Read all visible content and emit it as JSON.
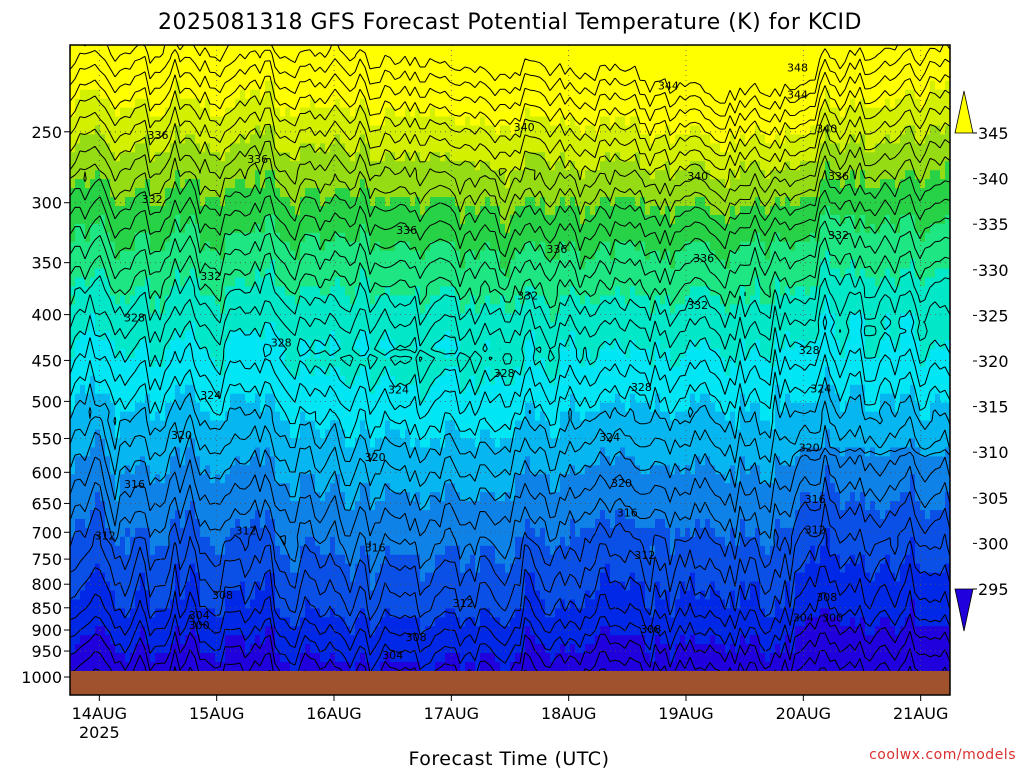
{
  "chart_data": {
    "type": "heatmap",
    "title": "2025081318 GFS Forecast Potential Temperature (K) for KCID",
    "xlabel": "Forecast Time (UTC)",
    "ylabel": "",
    "credit": "coolwx.com/models",
    "x_ticks": [
      {
        "label": "14AUG",
        "sublabel": "2025",
        "day": 14
      },
      {
        "label": "15AUG",
        "sublabel": "",
        "day": 15
      },
      {
        "label": "16AUG",
        "sublabel": "",
        "day": 16
      },
      {
        "label": "17AUG",
        "sublabel": "",
        "day": 17
      },
      {
        "label": "18AUG",
        "sublabel": "",
        "day": 18
      },
      {
        "label": "19AUG",
        "sublabel": "",
        "day": 19
      },
      {
        "label": "20AUG",
        "sublabel": "",
        "day": 20
      },
      {
        "label": "21AUG",
        "sublabel": "",
        "day": 21
      }
    ],
    "xlim_days": [
      13.75,
      21.25
    ],
    "y_ticks": [
      250,
      300,
      350,
      400,
      450,
      500,
      550,
      600,
      650,
      700,
      750,
      800,
      850,
      900,
      950,
      1000
    ],
    "ylim_hpa": [
      200,
      1000
    ],
    "y_scale": "log-pressure",
    "colorbar": {
      "levels": [
        295,
        300,
        305,
        310,
        315,
        320,
        325,
        330,
        335,
        340,
        345
      ],
      "colors": [
        "#2000dd",
        "#0028e6",
        "#0a50e6",
        "#0f82e8",
        "#06b6f0",
        "#00e6f5",
        "#00e8c8",
        "#1ee682",
        "#28d246",
        "#96dc14",
        "#d2f000",
        "#ffff00"
      ],
      "labels": [
        "295",
        "300",
        "305",
        "310",
        "315",
        "320",
        "325",
        "330",
        "335",
        "340",
        "345"
      ]
    },
    "contour_interval_K": 2,
    "contour_labels": [
      {
        "text": "348",
        "day": 19.95,
        "p": 212
      },
      {
        "text": "344",
        "day": 18.85,
        "p": 222
      },
      {
        "text": "344",
        "day": 19.95,
        "p": 227
      },
      {
        "text": "340",
        "day": 17.62,
        "p": 247
      },
      {
        "text": "340",
        "day": 20.2,
        "p": 248
      },
      {
        "text": "336",
        "day": 14.5,
        "p": 252
      },
      {
        "text": "336",
        "day": 15.35,
        "p": 268
      },
      {
        "text": "340",
        "day": 19.1,
        "p": 280
      },
      {
        "text": "336",
        "day": 20.3,
        "p": 280
      },
      {
        "text": "332",
        "day": 14.45,
        "p": 297
      },
      {
        "text": "336",
        "day": 16.62,
        "p": 322
      },
      {
        "text": "332",
        "day": 20.3,
        "p": 326
      },
      {
        "text": "336",
        "day": 17.9,
        "p": 338
      },
      {
        "text": "336",
        "day": 19.15,
        "p": 346
      },
      {
        "text": "332",
        "day": 14.95,
        "p": 362
      },
      {
        "text": "332",
        "day": 17.65,
        "p": 381
      },
      {
        "text": "332",
        "day": 19.1,
        "p": 390
      },
      {
        "text": "328",
        "day": 14.3,
        "p": 403
      },
      {
        "text": "328",
        "day": 15.55,
        "p": 430
      },
      {
        "text": "328",
        "day": 20.05,
        "p": 438
      },
      {
        "text": "328",
        "day": 17.45,
        "p": 465
      },
      {
        "text": "328",
        "day": 18.62,
        "p": 482
      },
      {
        "text": "324",
        "day": 14.95,
        "p": 492
      },
      {
        "text": "324",
        "day": 16.55,
        "p": 485
      },
      {
        "text": "324",
        "day": 20.15,
        "p": 484
      },
      {
        "text": "320",
        "day": 14.7,
        "p": 545
      },
      {
        "text": "324",
        "day": 18.35,
        "p": 548
      },
      {
        "text": "320",
        "day": 16.35,
        "p": 577
      },
      {
        "text": "320",
        "day": 20.05,
        "p": 563
      },
      {
        "text": "316",
        "day": 14.3,
        "p": 618
      },
      {
        "text": "320",
        "day": 18.45,
        "p": 617
      },
      {
        "text": "316",
        "day": 20.1,
        "p": 643
      },
      {
        "text": "316",
        "day": 18.5,
        "p": 665
      },
      {
        "text": "312",
        "day": 14.05,
        "p": 706
      },
      {
        "text": "312",
        "day": 15.25,
        "p": 697
      },
      {
        "text": "316",
        "day": 16.35,
        "p": 728
      },
      {
        "text": "312",
        "day": 20.1,
        "p": 695
      },
      {
        "text": "312",
        "day": 18.65,
        "p": 742
      },
      {
        "text": "308",
        "day": 15.05,
        "p": 822
      },
      {
        "text": "312",
        "day": 17.1,
        "p": 840
      },
      {
        "text": "308",
        "day": 20.2,
        "p": 827
      },
      {
        "text": "304",
        "day": 14.85,
        "p": 866
      },
      {
        "text": "300",
        "day": 14.85,
        "p": 889
      },
      {
        "text": "304",
        "day": 20.0,
        "p": 871
      },
      {
        "text": "300",
        "day": 20.25,
        "p": 871
      },
      {
        "text": "308",
        "day": 18.7,
        "p": 898
      },
      {
        "text": "308",
        "day": 16.7,
        "p": 916
      },
      {
        "text": "304",
        "day": 16.5,
        "p": 960
      }
    ]
  }
}
